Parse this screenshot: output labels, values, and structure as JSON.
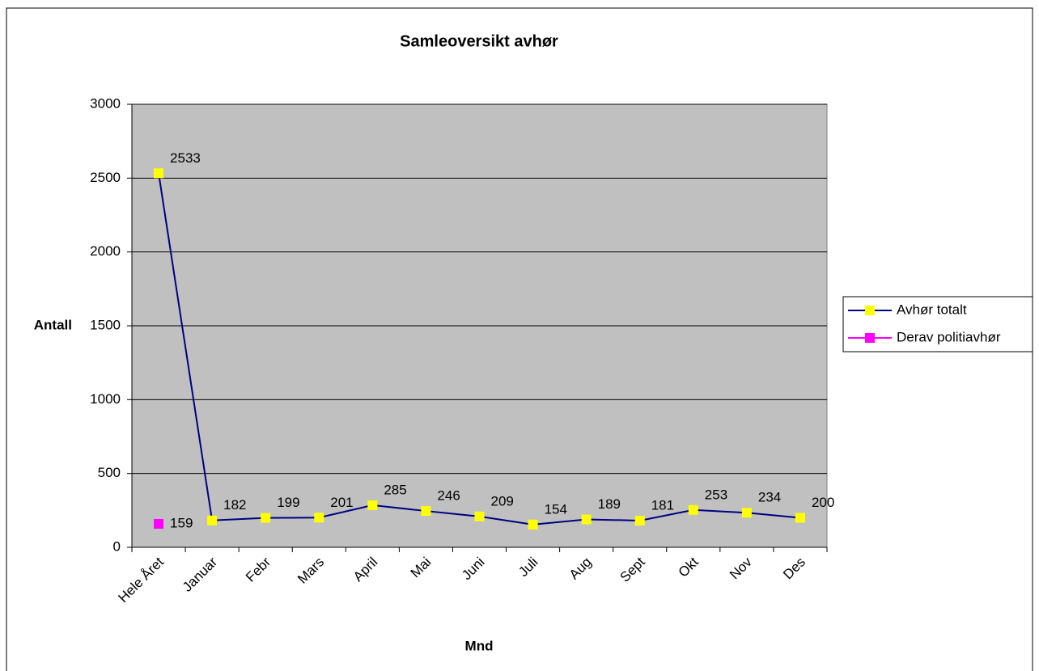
{
  "chart_data": {
    "type": "line",
    "title": "Samleoversikt avhør",
    "x_label": "Mnd",
    "y_label": "Antall",
    "categories": [
      "Hele Året",
      "Januar",
      "Febr",
      "Mars",
      "April",
      "Mai",
      "Juni",
      "Juli",
      "Aug",
      "Sept",
      "Okt",
      "Nov",
      "Des"
    ],
    "series": [
      {
        "name": "Avhør totalt",
        "color": "#000080",
        "marker_color": "#ffff00",
        "values": [
          2533,
          182,
          199,
          201,
          285,
          246,
          209,
          154,
          189,
          181,
          253,
          234,
          200
        ]
      },
      {
        "name": "Derav politiavhør",
        "color": "#ff00ff",
        "marker_color": "#ff00ff",
        "values": [
          159,
          null,
          null,
          null,
          null,
          null,
          null,
          null,
          null,
          null,
          null,
          null,
          null
        ]
      }
    ],
    "ylim": [
      0,
      3000
    ],
    "yticks": [
      0,
      500,
      1000,
      1500,
      2000,
      2500,
      3000
    ],
    "grid": true,
    "legend": "right"
  }
}
